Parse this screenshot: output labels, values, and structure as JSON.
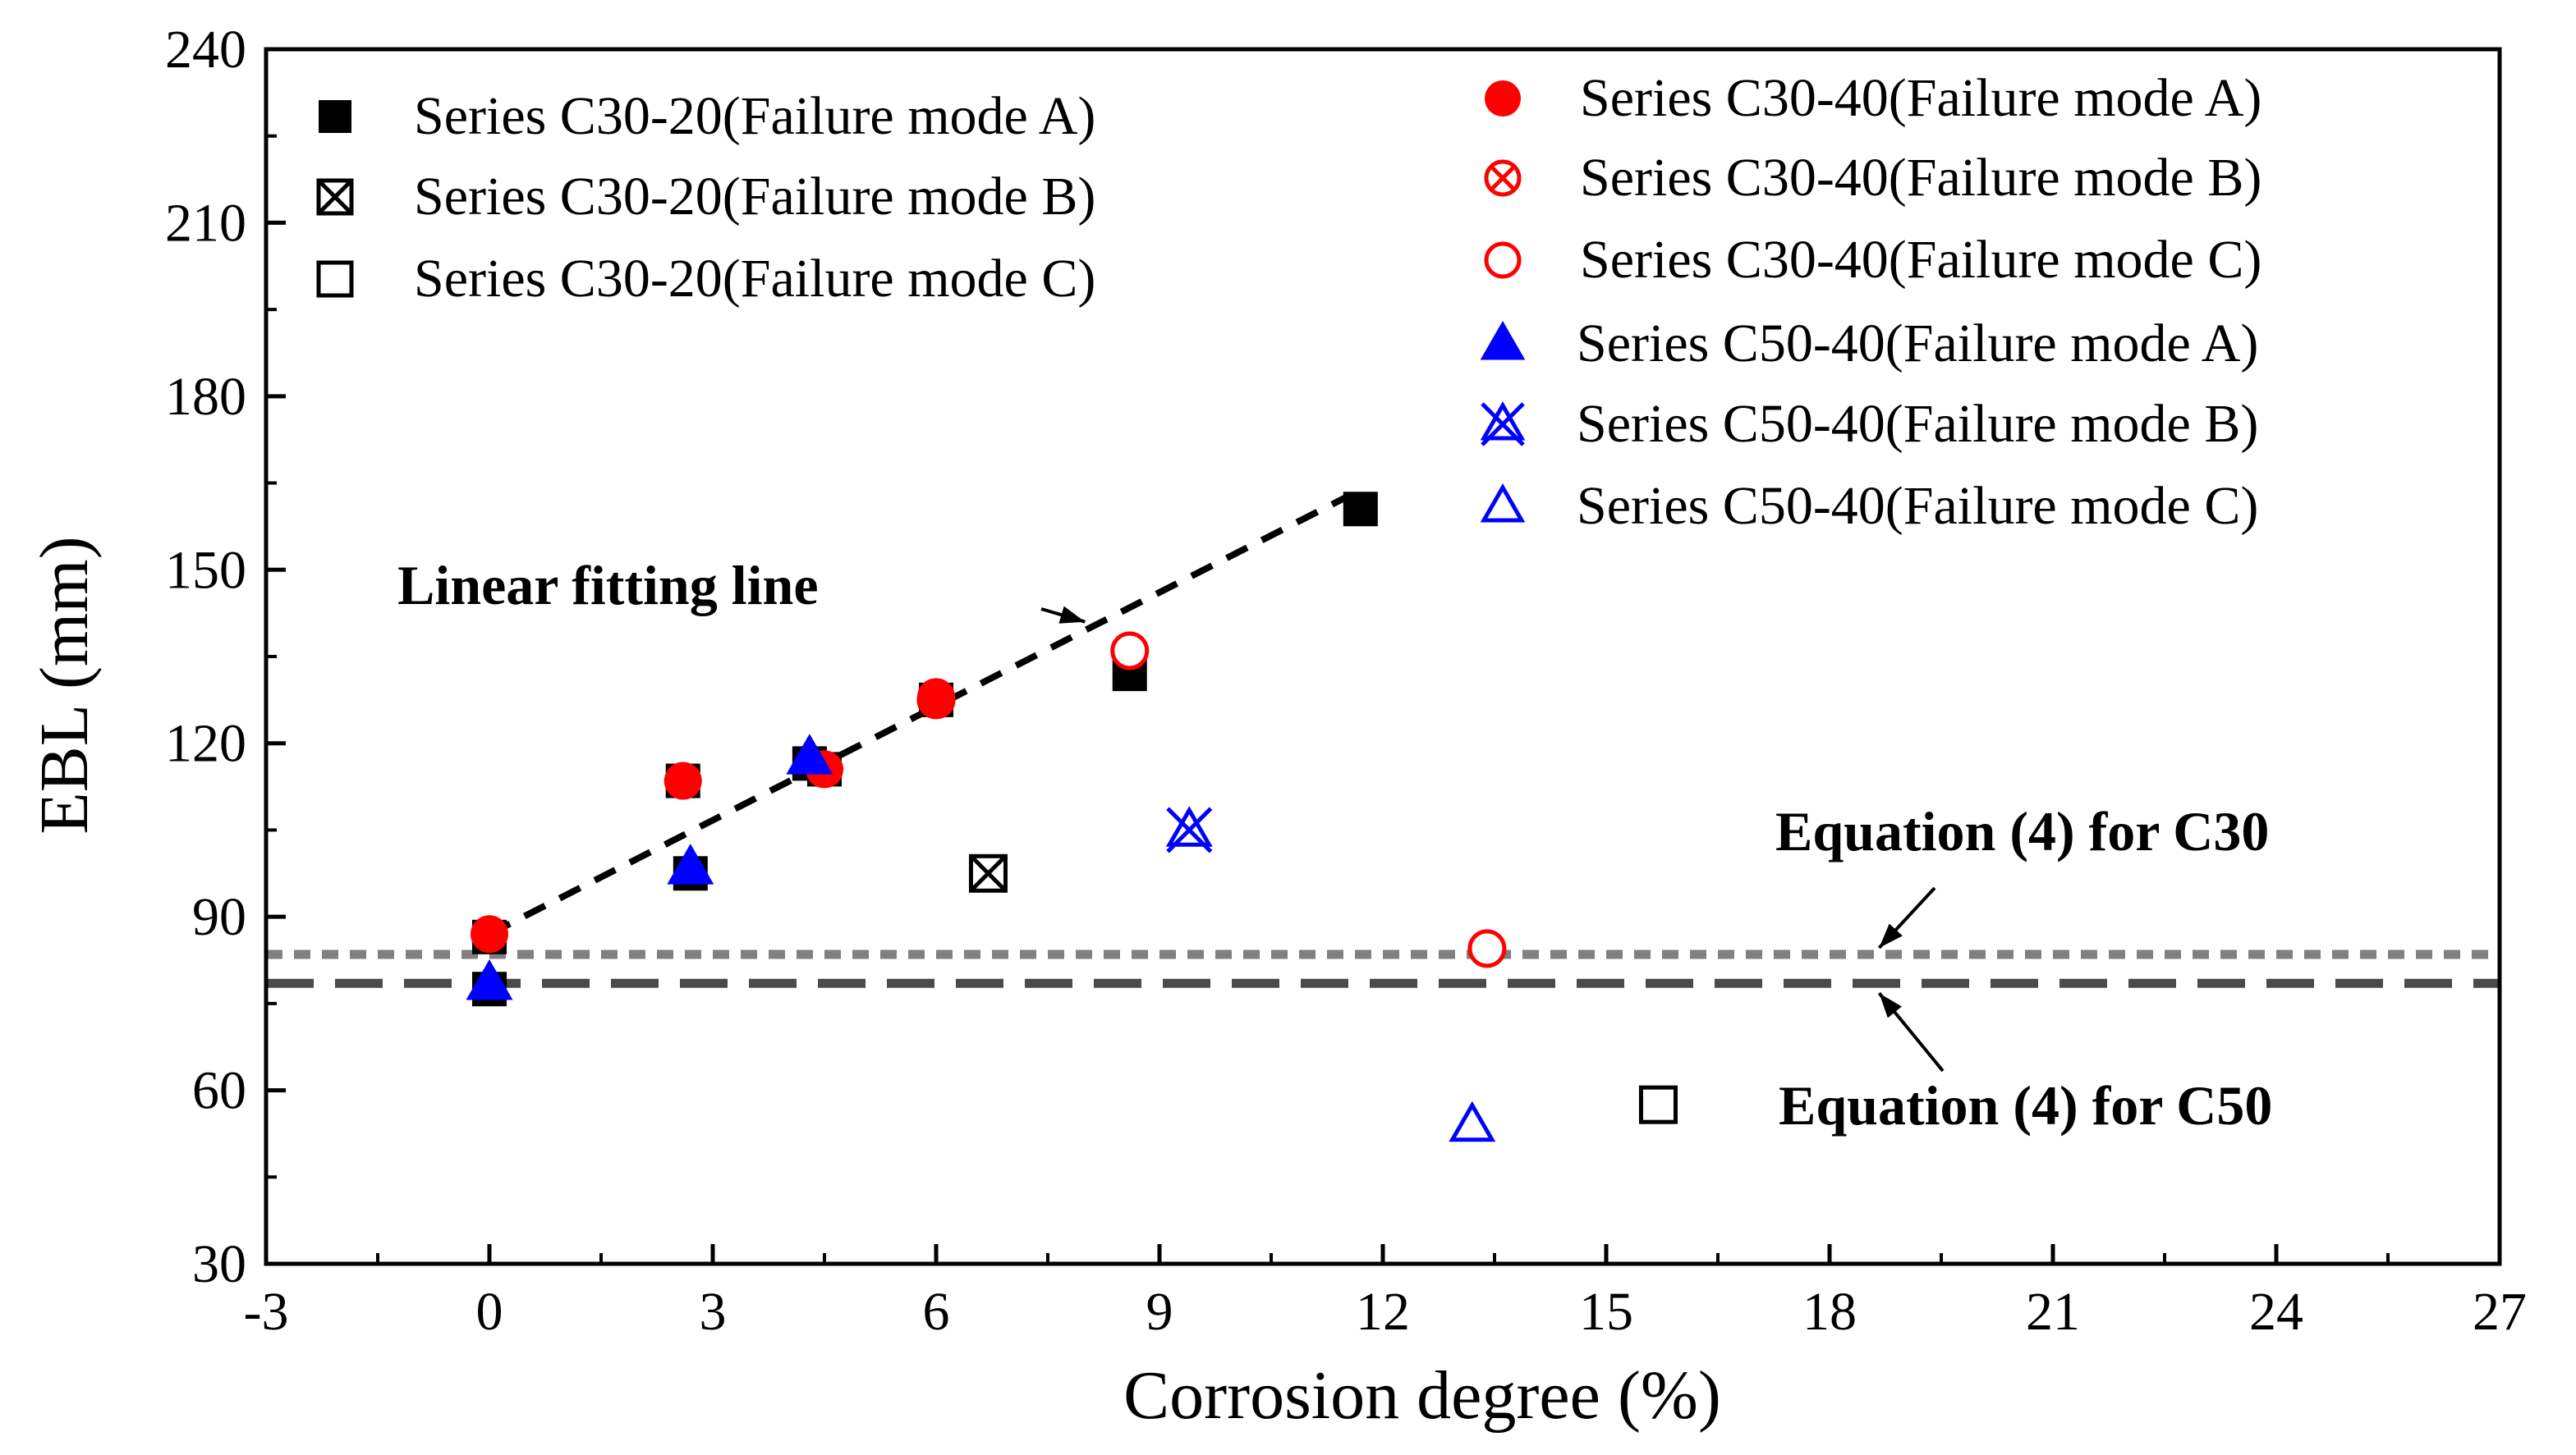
{
  "chart_data": {
    "type": "scatter",
    "xlabel": "Corrosion degree (%)",
    "ylabel": "EBL (mm)",
    "xlim": [
      -3,
      27
    ],
    "ylim": [
      30,
      240
    ],
    "x_ticks": [
      -3,
      0,
      3,
      6,
      9,
      12,
      15,
      18,
      21,
      24,
      27
    ],
    "y_ticks": [
      30,
      60,
      90,
      120,
      150,
      180,
      210,
      240
    ],
    "x_tick_labels": [
      "-3",
      "0",
      "3",
      "6",
      "9",
      "12",
      "15",
      "18",
      "21",
      "24",
      "27"
    ],
    "y_tick_labels": [
      "30",
      "60",
      "90",
      "120",
      "150",
      "180",
      "210",
      "240"
    ],
    "grid": false,
    "series": [
      {
        "name": "Series C30-20(Failure mode A)",
        "marker": "square-filled",
        "color": "#000000",
        "points": [
          [
            0,
            86.5
          ],
          [
            0,
            77.5
          ],
          [
            2.6,
            113.5
          ],
          [
            2.7,
            97.5
          ],
          [
            4.3,
            116.5
          ],
          [
            4.5,
            115.5
          ],
          [
            6.0,
            127.5
          ],
          [
            8.6,
            132.0
          ],
          [
            11.7,
            160.5
          ]
        ]
      },
      {
        "name": "Series C30-20(Failure mode B)",
        "marker": "square-x",
        "color": "#000000",
        "points": [
          [
            6.7,
            97.5
          ]
        ]
      },
      {
        "name": "Series C30-20(Failure mode C)",
        "marker": "square-open",
        "color": "#000000",
        "points": [
          [
            15.7,
            57.5
          ]
        ]
      },
      {
        "name": "Series C30-40(Failure mode A)",
        "marker": "circle-filled",
        "color": "#ff0000",
        "points": [
          [
            0,
            87.0
          ],
          [
            2.6,
            113.5
          ],
          [
            4.5,
            115.5
          ],
          [
            6.0,
            128.0
          ]
        ]
      },
      {
        "name": "Series C30-40(Failure mode B)",
        "marker": "circle-x",
        "color": "#ff0000",
        "points": [
          [
            6.0,
            127.5
          ]
        ]
      },
      {
        "name": "Series C30-40(Failure mode C)",
        "marker": "circle-open",
        "color": "#ff0000",
        "points": [
          [
            8.6,
            136.0
          ],
          [
            13.4,
            84.5
          ]
        ]
      },
      {
        "name": "Series C50-40(Failure mode A)",
        "marker": "triangle-filled",
        "color": "#0000ff",
        "points": [
          [
            0,
            78.5
          ],
          [
            2.7,
            98.5
          ],
          [
            4.3,
            117.5
          ]
        ]
      },
      {
        "name": "Series C50-40(Failure mode B)",
        "marker": "triangle-x",
        "color": "#0000ff",
        "points": [
          [
            9.4,
            105.0
          ]
        ]
      },
      {
        "name": "Series C50-40(Failure mode C)",
        "marker": "triangle-open",
        "color": "#0000ff",
        "points": [
          [
            13.2,
            54.0
          ]
        ]
      }
    ],
    "lines": [
      {
        "role": "fit",
        "style": "dashed",
        "color": "#000000",
        "x": [
          0,
          11.5
        ],
        "y": [
          87.0,
          162.5
        ]
      },
      {
        "role": "eq-c30",
        "style": "short-dash",
        "color": "#808080",
        "x": [
          -3,
          27
        ],
        "y": [
          83.5,
          83.5
        ]
      },
      {
        "role": "eq-c50",
        "style": "long-dash",
        "color": "#4a4a4a",
        "x": [
          -3,
          27
        ],
        "y": [
          78.5,
          78.5
        ]
      }
    ],
    "annotations": [
      {
        "text": "Linear fitting line",
        "arrow_to": [
          8.0,
          141.0
        ]
      },
      {
        "text": "Equation (4) for C30",
        "arrow_to": [
          18.6,
          83.5
        ]
      },
      {
        "text": "Equation (4) for C50",
        "arrow_to": [
          18.6,
          78.5
        ]
      }
    ],
    "legend_left": [
      "Series C30-20(Failure mode A)",
      "Series C30-20(Failure mode B)",
      "Series C30-20(Failure mode C)"
    ],
    "legend_right": [
      "Series C30-40(Failure mode A)",
      "Series C30-40(Failure mode B)",
      "Series C30-40(Failure mode C)",
      "Series C50-40(Failure mode A)",
      "Series C50-40(Failure mode B)",
      "Series C50-40(Failure mode C)"
    ]
  }
}
